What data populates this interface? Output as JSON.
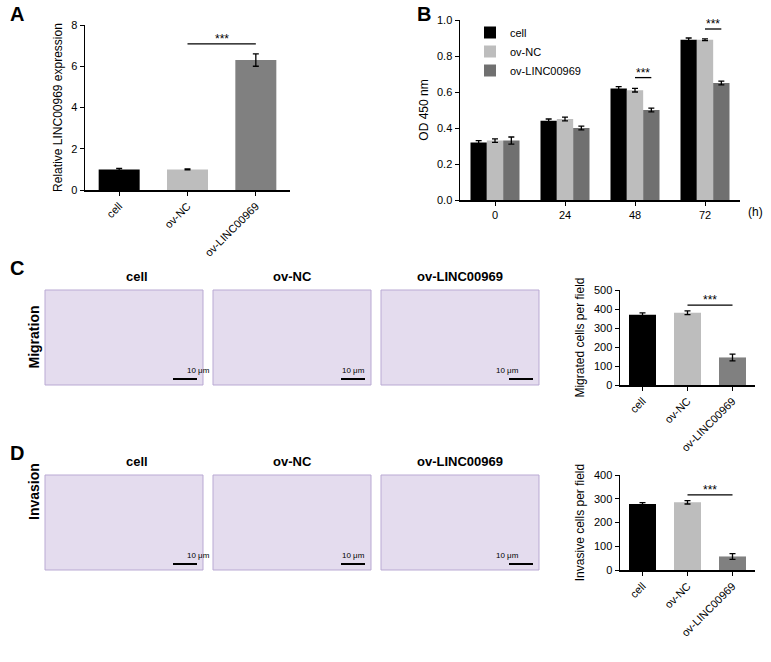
{
  "panels": [
    "A",
    "B",
    "C",
    "D"
  ],
  "chart_data": [
    {
      "type": "bar",
      "categories": [
        "cell",
        "ov-NC",
        "ov-LINC00969"
      ],
      "values": [
        1.0,
        1.0,
        6.3
      ],
      "errors": [
        0.05,
        0.02,
        0.3
      ],
      "colors": [
        "#000000",
        "#bdbdbd",
        "#808080"
      ],
      "ylabel": "Relative LINC00969 expression",
      "ylim": [
        0,
        8
      ],
      "yticks": [
        0,
        2,
        4,
        6,
        8
      ],
      "significance": [
        {
          "from": "ov-NC",
          "to": "ov-LINC00969",
          "label": "***"
        }
      ]
    },
    {
      "type": "bar",
      "categories": [
        "0",
        "24",
        "48",
        "72"
      ],
      "xlabel": "(h)",
      "ylabel": "OD 450 nm",
      "series": [
        {
          "name": "cell",
          "color": "#000000",
          "values": [
            0.32,
            0.44,
            0.62,
            0.89
          ],
          "errors": [
            0.01,
            0.01,
            0.01,
            0.01
          ]
        },
        {
          "name": "ov-NC",
          "color": "#bdbdbd",
          "values": [
            0.33,
            0.45,
            0.61,
            0.89
          ],
          "errors": [
            0.01,
            0.01,
            0.01,
            0.005
          ]
        },
        {
          "name": "ov-LINC00969",
          "color": "#707070",
          "values": [
            0.33,
            0.4,
            0.5,
            0.65
          ],
          "errors": [
            0.02,
            0.01,
            0.01,
            0.01
          ]
        }
      ],
      "legend": "top left",
      "ylim": [
        0,
        1.0
      ],
      "yticks": [
        {
          "value": 0,
          "label": "0.0"
        },
        0.2,
        0.4,
        0.6,
        0.8,
        {
          "value": 1.0,
          "label": "1.0"
        }
      ],
      "significance": [
        {
          "category": "48",
          "from": "ov-NC",
          "to": "ov-LINC00969",
          "label": "***"
        },
        {
          "category": "72",
          "from": "ov-NC",
          "to": "ov-LINC00969",
          "label": "***"
        }
      ]
    },
    {
      "type": "bar",
      "categories": [
        "cell",
        "ov-NC",
        "ov-LINC00969"
      ],
      "values": [
        370,
        380,
        145
      ],
      "errors": [
        10,
        10,
        18
      ],
      "colors": [
        "#000000",
        "#bdbdbd",
        "#808080"
      ],
      "ylabel": "Migrated cells per field",
      "ylim": [
        0,
        500
      ],
      "yticks": [
        0,
        100,
        200,
        300,
        400,
        500
      ],
      "significance": [
        {
          "from": "ov-NC",
          "to": "ov-LINC00969",
          "label": "***"
        }
      ]
    },
    {
      "type": "bar",
      "categories": [
        "cell",
        "ov-NC",
        "ov-LINC00969"
      ],
      "values": [
        278,
        285,
        57
      ],
      "errors": [
        6,
        7,
        12
      ],
      "colors": [
        "#000000",
        "#bdbdbd",
        "#808080"
      ],
      "ylabel": "Invasive cells per field",
      "ylim": [
        0,
        400
      ],
      "yticks": [
        0,
        100,
        200,
        300,
        400
      ],
      "significance": [
        {
          "from": "ov-NC",
          "to": "ov-LINC00969",
          "label": "***"
        }
      ]
    }
  ],
  "images": [
    {
      "row_label": "Migration",
      "titles": [
        "cell",
        "ov-NC",
        "ov-LINC00969"
      ],
      "scale_bar": "10 μm"
    },
    {
      "row_label": "Invasion",
      "titles": [
        "cell",
        "ov-NC",
        "ov-LINC00969"
      ],
      "scale_bar": "10 μm"
    }
  ]
}
